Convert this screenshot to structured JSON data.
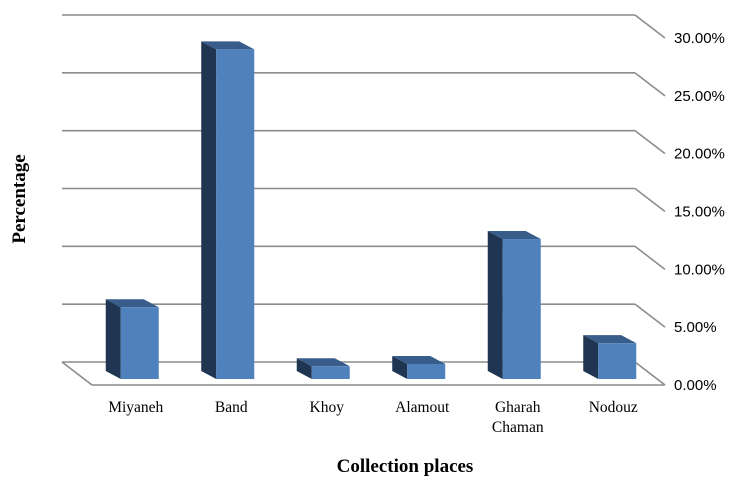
{
  "chart_data": {
    "type": "bar",
    "style": "3d-column",
    "title": "",
    "xlabel": "Collection places",
    "ylabel": "Percentage",
    "categories": [
      {
        "name": "Miyaneh",
        "lines": [
          "Miyaneh"
        ]
      },
      {
        "name": "Band",
        "lines": [
          "Band"
        ]
      },
      {
        "name": "Khoy",
        "lines": [
          "Khoy"
        ]
      },
      {
        "name": "Alamout",
        "lines": [
          "Alamout"
        ]
      },
      {
        "name": "Gharah Chaman",
        "lines": [
          "Gharah",
          "Chaman"
        ]
      },
      {
        "name": "Nodouz",
        "lines": [
          "Nodouz"
        ]
      }
    ],
    "series": [
      {
        "values": [
          6.2,
          28.5,
          1.1,
          1.3,
          12.1,
          3.1
        ],
        "color": "#4f81bd",
        "side_color": "#1f3552",
        "top_color": "#385d8a"
      }
    ],
    "ylim": [
      0,
      30
    ],
    "yticks": [
      "0.00%",
      "5.00%",
      "10.00%",
      "15.00%",
      "20.00%",
      "25.00%",
      "30.00%"
    ],
    "grid": true,
    "legend": "none"
  }
}
